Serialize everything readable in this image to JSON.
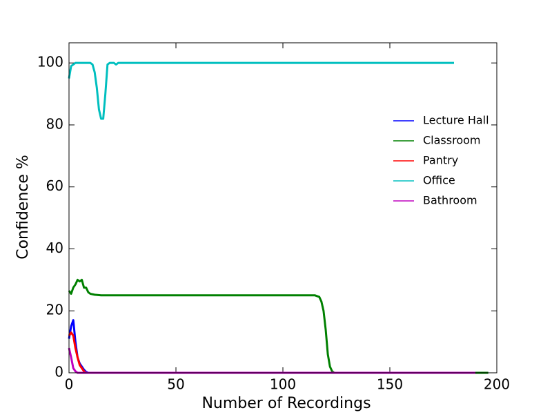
{
  "chart_data": {
    "type": "line",
    "x_label": "Number of Recordings",
    "y_label": "Confidence %",
    "xlim": [
      0,
      200
    ],
    "xticks": [
      0,
      50,
      100,
      150,
      200
    ],
    "ylim": [
      0,
      106.5
    ],
    "yticks": [
      0,
      20,
      40,
      60,
      80,
      100
    ],
    "grid": false,
    "legend": "right",
    "series": [
      {
        "name": "Lecture Hall",
        "color": "#0000ff",
        "x": [
          0,
          1,
          2,
          3,
          4,
          5,
          6,
          7,
          8,
          9,
          196
        ],
        "values": [
          11,
          15,
          17,
          10,
          5,
          3,
          2,
          1,
          0.3,
          0,
          0
        ]
      },
      {
        "name": "Classroom",
        "color": "#008000",
        "x": [
          0,
          1,
          2,
          3,
          4,
          5,
          6,
          7,
          8,
          9,
          10,
          12,
          15,
          20,
          115,
          117,
          118,
          119,
          120,
          121,
          122,
          123,
          124,
          196
        ],
        "values": [
          26.5,
          25.5,
          27.5,
          28.5,
          30,
          29.5,
          30,
          27.5,
          27.5,
          26,
          25.5,
          25.2,
          25,
          25,
          25,
          24.5,
          23,
          20,
          14,
          6,
          2,
          0.5,
          0,
          0
        ]
      },
      {
        "name": "Pantry",
        "color": "#ff0000",
        "x": [
          0,
          1,
          2,
          3,
          4,
          5,
          6,
          7,
          8,
          190
        ],
        "values": [
          12,
          13,
          12,
          8,
          5,
          2.5,
          1.5,
          0.5,
          0,
          0
        ]
      },
      {
        "name": "Office",
        "color": "#00bfbf",
        "x": [
          0,
          1,
          2,
          3,
          9,
          10,
          11,
          12,
          13,
          14,
          15,
          16,
          17,
          18,
          19,
          21,
          22,
          23,
          25,
          180
        ],
        "values": [
          95,
          99,
          99.5,
          100,
          100,
          100,
          99.5,
          97,
          92,
          85,
          82,
          82,
          90,
          99.5,
          100,
          100,
          99.5,
          100,
          100,
          100
        ]
      },
      {
        "name": "Bathroom",
        "color": "#bf00bf",
        "x": [
          0,
          1,
          2,
          3,
          4,
          190
        ],
        "values": [
          8,
          5,
          1.5,
          0.5,
          0,
          0
        ]
      }
    ]
  }
}
